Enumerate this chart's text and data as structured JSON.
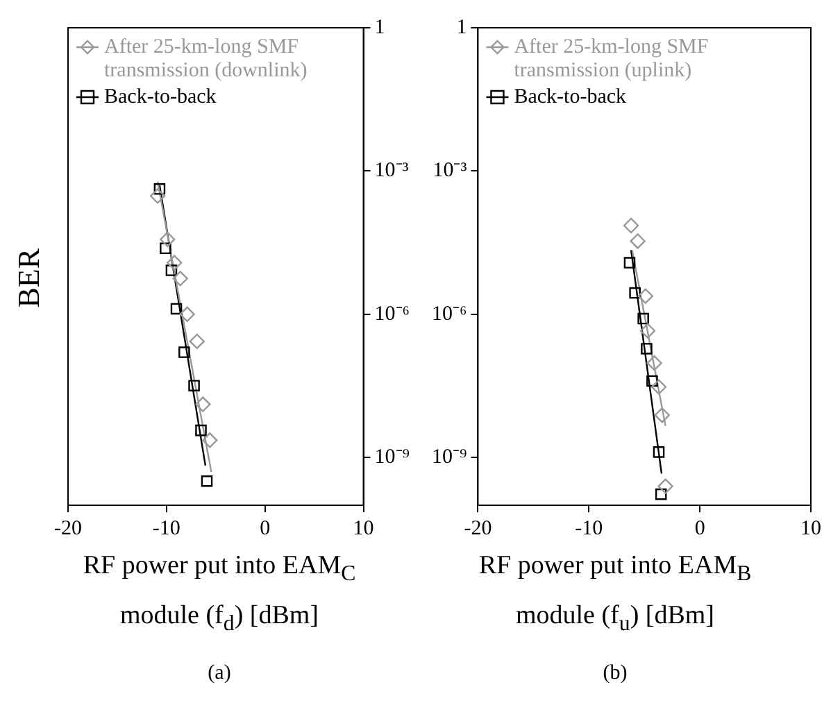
{
  "chart_data": [
    {
      "type": "scatter",
      "ylabel": "BER",
      "xlabel": "RF power put into EAM$_{C}$ module (f$_{d}$) [dBm]",
      "annotations": [
        "(a)"
      ],
      "log": "y",
      "xlim": [
        -20,
        10
      ],
      "xticks": [
        -20,
        -10,
        0,
        10
      ],
      "ylim": [
        1e-10,
        1
      ],
      "yticks": [
        1,
        {
          "value": 0.001,
          "label": "10⁻³"
        },
        {
          "value": 1e-06,
          "label": "10⁻⁶"
        },
        {
          "value": 1e-09,
          "label": "10⁻⁹"
        }
      ],
      "grid": false,
      "legend": "top left",
      "line_style": "solid",
      "series": [
        {
          "name": "After 25-km-long SMF transmission (downlink)",
          "color": "#999999",
          "marker": "diamond",
          "x": [
            -10.9,
            -9.9,
            -9.2,
            -8.6,
            -7.9,
            -6.9,
            -6.3,
            -5.6
          ],
          "values": [
            0.0003,
            3.7e-05,
            1.2e-05,
            5.6e-06,
            1e-06,
            2.7e-07,
            1.3e-08,
            2.3e-09
          ]
        },
        {
          "name": "Back-to-back",
          "color": "#000000",
          "marker": "square",
          "x": [
            -10.7,
            -10.1,
            -9.5,
            -9.0,
            -8.2,
            -7.2,
            -6.5,
            -5.9
          ],
          "values": [
            0.00042,
            2.4e-05,
            8.3e-06,
            1.3e-06,
            1.6e-07,
            3.2e-08,
            3.7e-09,
            3.2e-10
          ]
        },
        {
          "type": "line",
          "color": "#999999",
          "marker": "none",
          "x": [
            -10.9,
            -5.45
          ],
          "values": [
            0.0006,
            5e-10
          ]
        },
        {
          "type": "line",
          "color": "#000000",
          "marker": "none",
          "x": [
            -10.7,
            -6.05
          ],
          "values": [
            0.0005,
            6.8e-10
          ]
        }
      ]
    },
    {
      "type": "scatter",
      "xlabel": "RF power put into EAM$_{B}$ module (f$_{u}$) [dBm]",
      "annotations": [
        "(b)"
      ],
      "log": "y",
      "xlim": [
        -20,
        10
      ],
      "xticks": [
        -20,
        -10,
        0,
        10
      ],
      "ylim": [
        1e-10,
        1
      ],
      "yticks": [
        1,
        {
          "value": 0.001,
          "label": "10⁻³"
        },
        {
          "value": 1e-06,
          "label": "10⁻⁶"
        },
        {
          "value": 1e-09,
          "label": "10⁻⁹"
        }
      ],
      "grid": false,
      "legend": "top left",
      "line_style": "solid",
      "series": [
        {
          "name": "After 25-km-long SMF transmission (uplink)",
          "color": "#999999",
          "marker": "diamond",
          "x": [
            -6.2,
            -5.6,
            -4.9,
            -4.7,
            -4.1,
            -3.7,
            -3.4,
            -3.1
          ],
          "values": [
            7.2e-05,
            3.4e-05,
            2.4e-06,
            4.5e-07,
            9.5e-08,
            3e-08,
            7.7e-09,
            2.5e-10
          ]
        },
        {
          "name": "Back-to-back",
          "color": "#000000",
          "marker": "square",
          "x": [
            -6.33,
            -5.85,
            -5.1,
            -4.8,
            -4.3,
            -3.7,
            -3.5
          ],
          "values": [
            1.2e-05,
            2.8e-06,
            8.1e-07,
            1.9e-07,
            4e-08,
            1.3e-09,
            1.7e-10
          ]
        },
        {
          "type": "line",
          "color": "#999999",
          "marker": "none",
          "x": [
            -6.1,
            -3.1
          ],
          "values": [
            2.2e-05,
            4.6e-09
          ]
        },
        {
          "type": "line",
          "color": "#000000",
          "marker": "none",
          "x": [
            -6.2,
            -3.45
          ],
          "values": [
            2.2e-05,
            4.6e-10
          ]
        }
      ]
    }
  ]
}
